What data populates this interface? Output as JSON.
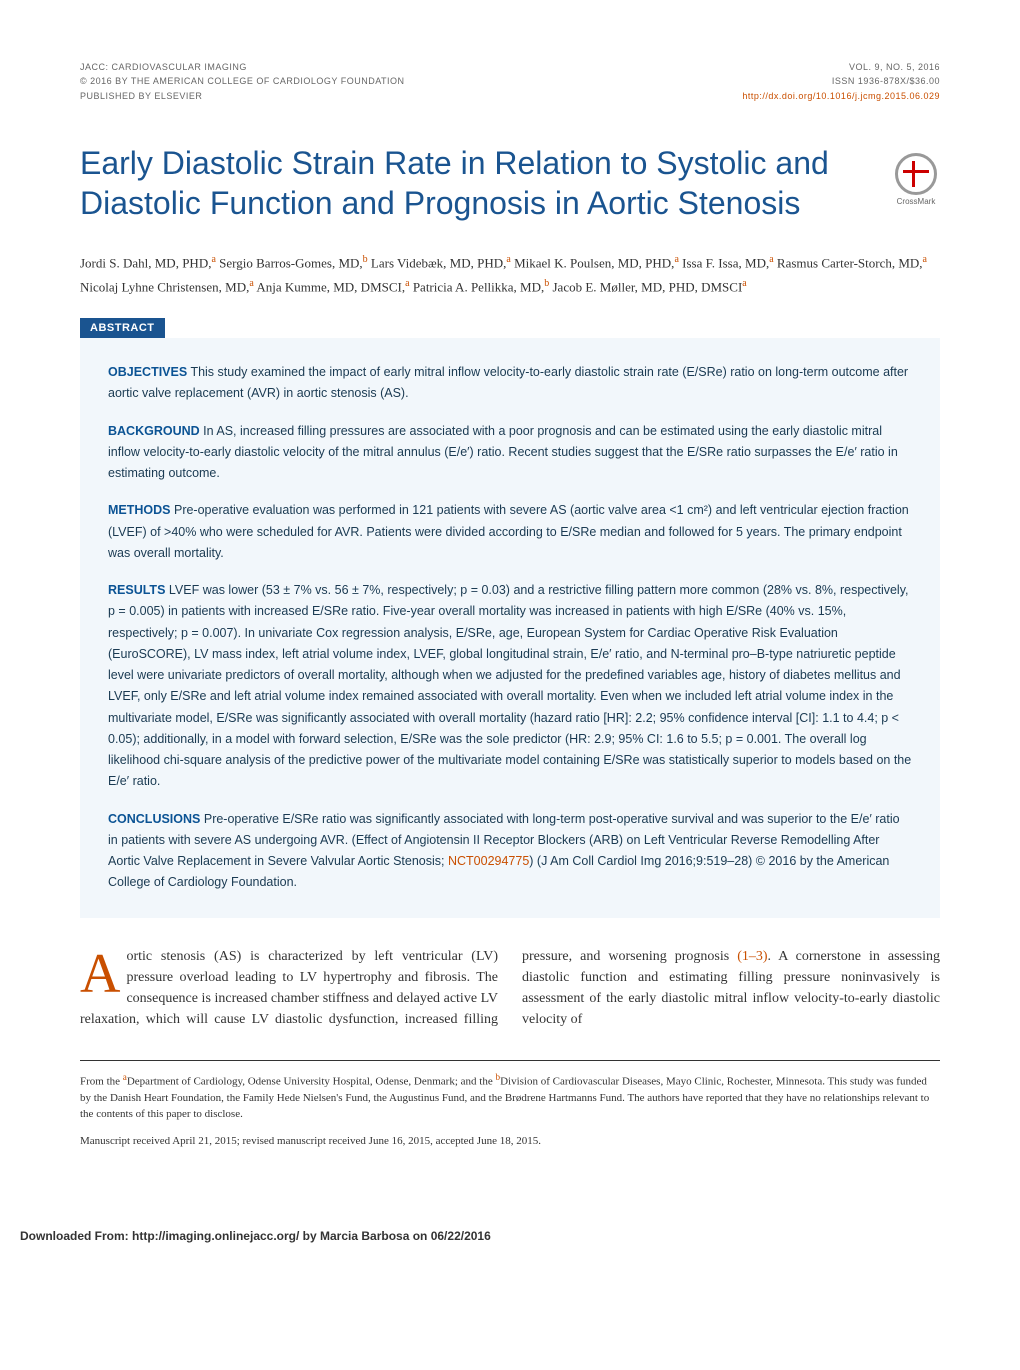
{
  "header": {
    "left_line1": "JACC: CARDIOVASCULAR IMAGING",
    "left_line2": "© 2016 BY THE AMERICAN COLLEGE OF CARDIOLOGY FOUNDATION",
    "left_line3": "PUBLISHED BY ELSEVIER",
    "right_line1": "VOL. 9, NO. 5, 2016",
    "right_line2": "ISSN 1936-878X/$36.00",
    "doi": "http://dx.doi.org/10.1016/j.jcmg.2015.06.029"
  },
  "title": "Early Diastolic Strain Rate in Relation to Systolic and Diastolic Function and Prognosis in Aortic Stenosis",
  "crossmark_label": "CrossMark",
  "authors_html": "Jordi S. Dahl, MD, PHD,<sup>a</sup> Sergio Barros-Gomes, MD,<sup>b</sup> Lars Videbæk, MD, PHD,<sup>a</sup> Mikael K. Poulsen, MD, PHD,<sup>a</sup> Issa F. Issa, MD,<sup>a</sup> Rasmus Carter-Storch, MD,<sup>a</sup> Nicolaj Lyhne Christensen, MD,<sup>a</sup> Anja Kumme, MD, DMSCI,<sup>a</sup> Patricia A. Pellikka, MD,<sup>b</sup> Jacob E. Møller, MD, PHD, DMSCI<sup>a</sup>",
  "abstract_label": "ABSTRACT",
  "abstract": {
    "objectives": "This study examined the impact of early mitral inflow velocity-to-early diastolic strain rate (E/SRe) ratio on long-term outcome after aortic valve replacement (AVR) in aortic stenosis (AS).",
    "background": "In AS, increased filling pressures are associated with a poor prognosis and can be estimated using the early diastolic mitral inflow velocity-to-early diastolic velocity of the mitral annulus (E/e′) ratio. Recent studies suggest that the E/SRe ratio surpasses the E/e′ ratio in estimating outcome.",
    "methods": "Pre-operative evaluation was performed in 121 patients with severe AS (aortic valve area <1 cm²) and left ventricular ejection fraction (LVEF) of >40% who were scheduled for AVR. Patients were divided according to E/SRe median and followed for 5 years. The primary endpoint was overall mortality.",
    "results": "LVEF was lower (53 ± 7% vs. 56 ± 7%, respectively; p = 0.03) and a restrictive filling pattern more common (28% vs. 8%, respectively, p = 0.005) in patients with increased E/SRe ratio. Five-year overall mortality was increased in patients with high E/SRe (40% vs. 15%, respectively; p = 0.007). In univariate Cox regression analysis, E/SRe, age, European System for Cardiac Operative Risk Evaluation (EuroSCORE), LV mass index, left atrial volume index, LVEF, global longitudinal strain, E/e′ ratio, and N-terminal pro–B-type natriuretic peptide level were univariate predictors of overall mortality, although when we adjusted for the predefined variables age, history of diabetes mellitus and LVEF, only E/SRe and left atrial volume index remained associated with overall mortality. Even when we included left atrial volume index in the multivariate model, E/SRe was significantly associated with overall mortality (hazard ratio [HR]: 2.2; 95% confidence interval [CI]: 1.1 to 4.4; p < 0.05); additionally, in a model with forward selection, E/SRe was the sole predictor (HR: 2.9; 95% CI: 1.6 to 5.5; p = 0.001. The overall log likelihood chi-square analysis of the predictive power of the multivariate model containing E/SRe was statistically superior to models based on the E/e′ ratio.",
    "conclusions_pre": "Pre-operative E/SRe ratio was significantly associated with long-term post-operative survival and was superior to the E/e′ ratio in patients with severe AS undergoing AVR. (Effect of Angiotensin II Receptor Blockers (ARB) on Left Ventricular Reverse Remodelling After Aortic Valve Replacement in Severe Valvular Aortic Stenosis; ",
    "trial_id": "NCT00294775",
    "conclusions_post": ") (J Am Coll Cardiol Img 2016;9:519–28) © 2016 by the American College of Cardiology Foundation."
  },
  "body": {
    "drop": "A",
    "para_pre": "ortic stenosis (AS) is characterized by left ventricular (LV) pressure overload leading to LV hypertrophy and fibrosis. The consequence is increased chamber stiffness and delayed active LV relaxation, which will cause LV diastolic dysfunction, increased filling pressure, and worsening prognosis ",
    "ref": "(1–3)",
    "para_post": ". A cornerstone in assessing diastolic function and estimating filling pressure noninvasively is assessment of the early diastolic mitral inflow velocity-to-early diastolic velocity of"
  },
  "footnotes": {
    "affil": "From the <sup>a</sup>Department of Cardiology, Odense University Hospital, Odense, Denmark; and the <sup>b</sup>Division of Cardiovascular Diseases, Mayo Clinic, Rochester, Minnesota. This study was funded by the Danish Heart Foundation, the Family Hede Nielsen's Fund, the Augustinus Fund, and the Brødrene Hartmanns Fund. The authors have reported that they have no relationships relevant to the contents of this paper to disclose.",
    "dates": "Manuscript received April 21, 2015; revised manuscript received June 16, 2015, accepted June 18, 2015."
  },
  "download": "Downloaded From: http://imaging.onlinejacc.org/ by Marcia Barbosa on 06/22/2016"
}
